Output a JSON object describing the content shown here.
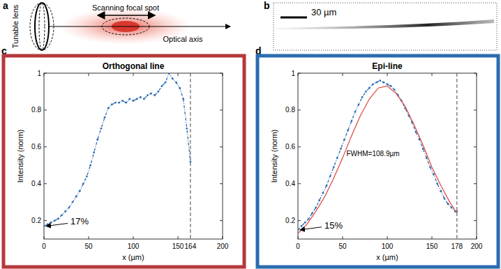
{
  "panel_labels": [
    "a",
    "b",
    "c",
    "d"
  ],
  "diagram": {
    "labels": [
      "Tunable lens",
      "Scanning focal spot",
      "Optical axis"
    ]
  },
  "image": {
    "scale_bar": "30 µm"
  },
  "chart_data": [
    {
      "type": "line",
      "title": "Orthogonal line",
      "x_label": "x (µm)",
      "y_label": "Intensity (norm)",
      "xlim": [
        0,
        200
      ],
      "xticks": [
        0,
        50,
        100,
        150,
        200
      ],
      "ylim": [
        0.1,
        1
      ],
      "yticks": [
        0.2,
        0.4,
        0.6,
        0.8,
        1
      ],
      "color": "#b5393b",
      "vline": 164,
      "annotations": [
        {
          "text": "17%",
          "y": 0.17
        }
      ],
      "series": [
        {
          "color": "#2a6cb0",
          "marker": "dot",
          "line_style": "dashdot",
          "x": [
            0,
            4,
            8,
            12,
            16,
            20,
            24,
            28,
            32,
            36,
            40,
            44,
            48,
            52,
            56,
            60,
            64,
            68,
            72,
            76,
            80,
            84,
            88,
            92,
            96,
            100,
            104,
            108,
            112,
            116,
            120,
            124,
            128,
            132,
            136,
            140,
            144,
            148,
            152,
            156,
            160,
            164
          ],
          "values": [
            0.17,
            0.18,
            0.19,
            0.2,
            0.21,
            0.23,
            0.25,
            0.27,
            0.3,
            0.33,
            0.36,
            0.4,
            0.44,
            0.5,
            0.57,
            0.64,
            0.7,
            0.76,
            0.81,
            0.83,
            0.84,
            0.84,
            0.85,
            0.84,
            0.86,
            0.85,
            0.86,
            0.87,
            0.86,
            0.88,
            0.89,
            0.88,
            0.9,
            0.93,
            0.95,
            1.0,
            0.97,
            0.95,
            0.92,
            0.86,
            0.7,
            0.52
          ]
        }
      ]
    },
    {
      "type": "line",
      "title": "Epi-line",
      "x_label": "x (µm)",
      "y_label": "Intensity (norm)",
      "xlim": [
        0,
        200
      ],
      "xticks": [
        0,
        50,
        100,
        150,
        200
      ],
      "ylim": [
        0.1,
        1
      ],
      "yticks": [
        0.2,
        0.4,
        0.6,
        0.8,
        1
      ],
      "color": "#2a6cb0",
      "vline": 178,
      "annotations": [
        {
          "text": "15%",
          "y": 0.15
        },
        {
          "text": "FWHM=108.9µm"
        }
      ],
      "series": [
        {
          "color": "#2a6cb0",
          "marker": "dot",
          "line_style": "dashdot",
          "x": [
            0,
            4,
            8,
            12,
            16,
            20,
            24,
            28,
            32,
            36,
            40,
            44,
            48,
            52,
            56,
            60,
            64,
            68,
            72,
            76,
            80,
            84,
            88,
            92,
            96,
            100,
            104,
            108,
            112,
            116,
            120,
            124,
            128,
            132,
            136,
            140,
            144,
            148,
            152,
            156,
            160,
            164,
            168,
            172,
            176,
            178
          ],
          "values": [
            0.15,
            0.17,
            0.19,
            0.21,
            0.24,
            0.27,
            0.31,
            0.35,
            0.39,
            0.44,
            0.49,
            0.54,
            0.59,
            0.64,
            0.69,
            0.74,
            0.79,
            0.83,
            0.87,
            0.9,
            0.92,
            0.94,
            0.95,
            0.96,
            0.95,
            0.94,
            0.93,
            0.91,
            0.88,
            0.85,
            0.81,
            0.77,
            0.73,
            0.68,
            0.64,
            0.59,
            0.54,
            0.49,
            0.45,
            0.4,
            0.36,
            0.32,
            0.29,
            0.27,
            0.25,
            0.25
          ]
        },
        {
          "color": "#e0403a",
          "marker": "none",
          "line_style": "solid",
          "x": [
            0,
            10,
            20,
            30,
            40,
            50,
            60,
            70,
            80,
            90,
            100,
            110,
            120,
            130,
            140,
            150,
            160,
            170,
            178
          ],
          "values": [
            0.13,
            0.18,
            0.25,
            0.33,
            0.43,
            0.54,
            0.66,
            0.77,
            0.86,
            0.92,
            0.93,
            0.89,
            0.82,
            0.72,
            0.61,
            0.49,
            0.39,
            0.3,
            0.24
          ]
        }
      ]
    }
  ]
}
